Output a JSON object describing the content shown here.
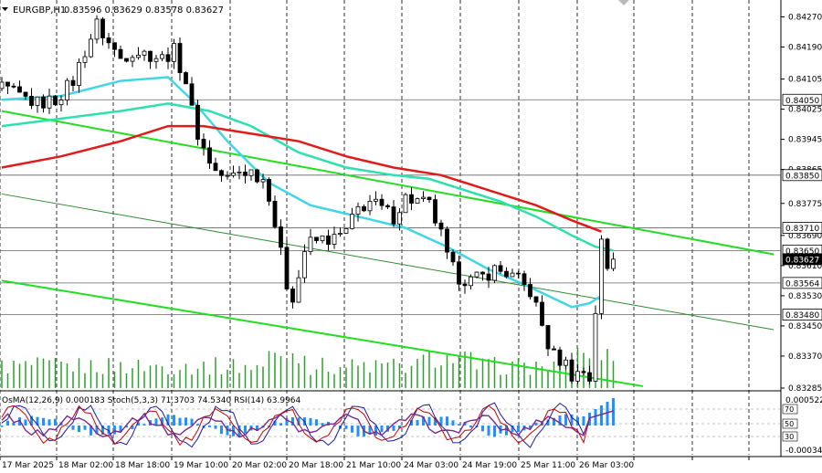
{
  "header": {
    "symbol": "EURGBP,H1",
    "ohlc": "0.83596 0.83629 0.83578 0.83627"
  },
  "subwindow": {
    "label": "OsMA(12,26,9) 0.000183 Stoch(5,3,3) 71.3703 74.5340 RSI(14) 63.9964",
    "scale_top": "0.000522",
    "scale_bottom": "-0.000344",
    "levels": [
      "70",
      "50",
      "30"
    ]
  },
  "colors": {
    "background": "#ffffff",
    "grid": "#000000",
    "candle": "#000000",
    "volume": "#2ca02c",
    "ma_fast": "#3fd6e8",
    "ma_mid": "#2ee0b0",
    "ma_slow": "#e01b1b",
    "channel": "#22dd22",
    "channel_mid": "#2e8b2e",
    "osma": "#1e90ff",
    "stoch_main": "#1a1aa0",
    "stoch_signal": "#cc0000",
    "rsi": "#7a2a8a",
    "current_price_label": "#ffffff"
  },
  "chart_data": {
    "type": "candlestick",
    "symbol": "EURGBP",
    "timeframe": "H1",
    "ylim": [
      0.83285,
      0.84305
    ],
    "price_ticks": [
      "0.84270",
      "0.84190",
      "0.84105",
      "0.84025",
      "0.83945",
      "0.83865",
      "0.83775",
      "0.83690",
      "0.83610",
      "0.83530",
      "0.83450",
      "0.83370",
      "0.83285"
    ],
    "marked_levels": [
      {
        "label": "0.84050",
        "value": 0.8405
      },
      {
        "label": "0.83850",
        "value": 0.8385
      },
      {
        "label": "0.83710",
        "value": 0.8371
      },
      {
        "label": "0.83650",
        "value": 0.8365
      },
      {
        "label": "0.83627",
        "value": 0.83627,
        "current": true
      },
      {
        "label": "0.83564",
        "value": 0.83564
      },
      {
        "label": "0.83480",
        "value": 0.8348
      }
    ],
    "time_labels": [
      "17 Mar 2025",
      "18 Mar 02:00",
      "18 Mar 18:00",
      "19 Mar 10:00",
      "20 Mar 02:00",
      "20 Mar 18:00",
      "21 Mar 10:00",
      "24 Mar 03:00",
      "24 Mar 19:00",
      "25 Mar 11:00",
      "26 Mar 03:00"
    ],
    "close_path": [
      [
        0,
        0.8408
      ],
      [
        3,
        0.8406
      ],
      [
        6,
        0.8404
      ],
      [
        9,
        0.8405
      ],
      [
        12,
        0.841
      ],
      [
        14,
        0.8418
      ],
      [
        16,
        0.8425
      ],
      [
        18,
        0.842
      ],
      [
        20,
        0.8416
      ],
      [
        22,
        0.8418
      ],
      [
        25,
        0.8417
      ],
      [
        27,
        0.8416
      ],
      [
        29,
        0.8418
      ],
      [
        31,
        0.841
      ],
      [
        32,
        0.8402
      ],
      [
        33,
        0.8396
      ],
      [
        34,
        0.8392
      ],
      [
        36,
        0.8386
      ],
      [
        38,
        0.8384
      ],
      [
        40,
        0.8386
      ],
      [
        42,
        0.8386
      ],
      [
        44,
        0.8384
      ],
      [
        45,
        0.838
      ],
      [
        46,
        0.8372
      ],
      [
        47,
        0.8364
      ],
      [
        48,
        0.8356
      ],
      [
        49,
        0.8353
      ],
      [
        50,
        0.8358
      ],
      [
        51,
        0.8365
      ],
      [
        52,
        0.8367
      ],
      [
        54,
        0.8368
      ],
      [
        56,
        0.8368
      ],
      [
        58,
        0.837
      ],
      [
        60,
        0.8376
      ],
      [
        62,
        0.8378
      ],
      [
        64,
        0.8376
      ],
      [
        66,
        0.8374
      ],
      [
        68,
        0.8379
      ],
      [
        70,
        0.8378
      ],
      [
        72,
        0.8377
      ],
      [
        73,
        0.8373
      ],
      [
        74,
        0.8369
      ],
      [
        75,
        0.8363
      ],
      [
        76,
        0.836
      ],
      [
        77,
        0.8358
      ],
      [
        79,
        0.8357
      ],
      [
        81,
        0.8358
      ],
      [
        83,
        0.836
      ],
      [
        85,
        0.8359
      ],
      [
        87,
        0.8357
      ],
      [
        89,
        0.8354
      ],
      [
        90,
        0.835
      ],
      [
        91,
        0.8345
      ],
      [
        92,
        0.834
      ],
      [
        93,
        0.8337
      ],
      [
        95,
        0.8335
      ],
      [
        96,
        0.8332
      ],
      [
        98,
        0.8333
      ],
      [
        99,
        0.8331
      ],
      [
        100,
        0.8349
      ],
      [
        101,
        0.8367
      ],
      [
        102,
        0.836
      ],
      [
        103,
        0.83627
      ]
    ],
    "series": [
      {
        "name": "MA fast",
        "values": [
          [
            0,
            0.8405
          ],
          [
            10,
            0.8406
          ],
          [
            20,
            0.841
          ],
          [
            28,
            0.8411
          ],
          [
            32,
            0.8405
          ],
          [
            38,
            0.8394
          ],
          [
            45,
            0.8383
          ],
          [
            52,
            0.8377
          ],
          [
            60,
            0.8374
          ],
          [
            68,
            0.8371
          ],
          [
            75,
            0.8366
          ],
          [
            82,
            0.836
          ],
          [
            88,
            0.8356
          ],
          [
            92,
            0.8353
          ],
          [
            96,
            0.835
          ],
          [
            99,
            0.8351
          ],
          [
            101,
            0.8353
          ]
        ]
      },
      {
        "name": "MA mid",
        "values": [
          [
            0,
            0.8398
          ],
          [
            10,
            0.84
          ],
          [
            20,
            0.8402
          ],
          [
            28,
            0.8404
          ],
          [
            35,
            0.8402
          ],
          [
            42,
            0.8398
          ],
          [
            50,
            0.8391
          ],
          [
            58,
            0.8387
          ],
          [
            66,
            0.8385
          ],
          [
            72,
            0.8384
          ],
          [
            78,
            0.8381
          ],
          [
            84,
            0.8378
          ],
          [
            90,
            0.8374
          ],
          [
            96,
            0.8369
          ],
          [
            100,
            0.8366
          ],
          [
            103,
            0.8365
          ]
        ]
      },
      {
        "name": "MA slow",
        "values": [
          [
            0,
            0.8387
          ],
          [
            10,
            0.839
          ],
          [
            20,
            0.8394
          ],
          [
            28,
            0.8398
          ],
          [
            34,
            0.8398
          ],
          [
            42,
            0.8396
          ],
          [
            50,
            0.8394
          ],
          [
            58,
            0.839
          ],
          [
            66,
            0.8387
          ],
          [
            74,
            0.8385
          ],
          [
            82,
            0.8381
          ],
          [
            90,
            0.8377
          ],
          [
            96,
            0.8373
          ],
          [
            101,
            0.837
          ]
        ]
      }
    ],
    "channel_upper": [
      [
        0,
        0.8402
      ],
      [
        130,
        0.8364
      ]
    ],
    "channel_mid": [
      [
        0,
        0.838
      ],
      [
        130,
        0.8344
      ]
    ],
    "channel_lower": [
      [
        0,
        0.8357
      ],
      [
        108,
        0.8329
      ]
    ]
  }
}
